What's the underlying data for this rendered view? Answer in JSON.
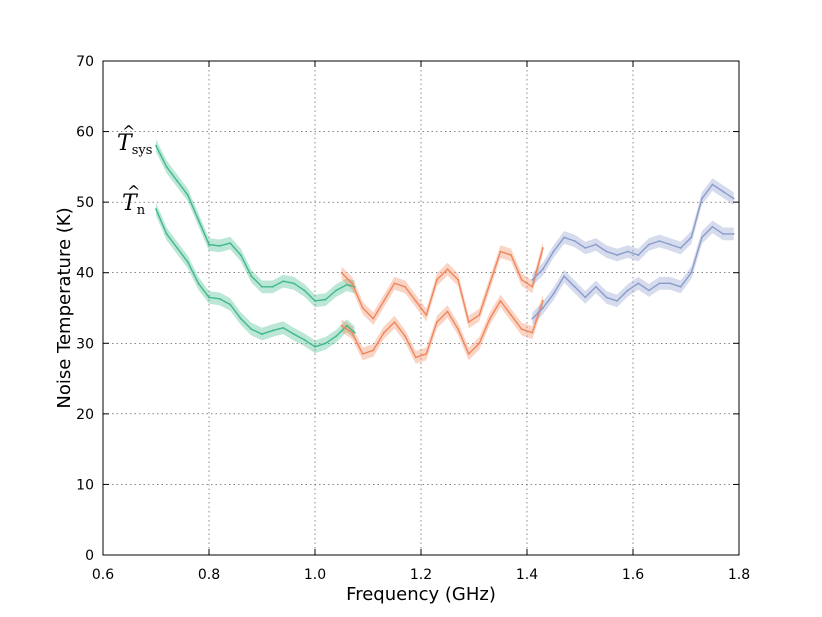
{
  "chart_data": {
    "type": "line",
    "title": "",
    "xlabel": "Frequency (GHz)",
    "ylabel": "Noise Temperature (K)",
    "xlim": [
      0.6,
      1.8
    ],
    "ylim": [
      0,
      70
    ],
    "xticks": [
      "0.6",
      "0.8",
      "1.0",
      "1.2",
      "1.4",
      "1.6",
      "1.8"
    ],
    "yticks": [
      "0",
      "10",
      "20",
      "30",
      "40",
      "50",
      "60",
      "70"
    ],
    "grid": true,
    "curve_labels": [
      {
        "main": "T",
        "sub": "sys",
        "hat": "^"
      },
      {
        "main": "T",
        "sub": "n",
        "hat": "^"
      }
    ],
    "band_colors": [
      "#3fb98a",
      "#f0865c",
      "#8a9ccc"
    ],
    "series": [
      {
        "band": 0,
        "curve": "sys",
        "x": [
          0.7,
          0.72,
          0.74,
          0.76,
          0.78,
          0.8,
          0.82,
          0.84,
          0.86,
          0.88,
          0.9,
          0.92,
          0.94,
          0.96,
          0.98,
          1.0,
          1.02,
          1.04,
          1.06,
          1.075
        ],
        "y": [
          58.0,
          55.0,
          53.0,
          51.0,
          47.5,
          44.0,
          43.8,
          44.2,
          42.5,
          39.5,
          38.0,
          38.0,
          38.8,
          38.5,
          37.5,
          36.0,
          36.2,
          37.5,
          38.3,
          38.0
        ]
      },
      {
        "band": 0,
        "curve": "n",
        "x": [
          0.7,
          0.72,
          0.74,
          0.76,
          0.78,
          0.8,
          0.82,
          0.84,
          0.86,
          0.88,
          0.9,
          0.92,
          0.94,
          0.96,
          0.98,
          1.0,
          1.02,
          1.04,
          1.06,
          1.075
        ],
        "y": [
          49.0,
          45.5,
          43.5,
          41.5,
          38.5,
          36.5,
          36.3,
          35.5,
          33.5,
          32.0,
          31.3,
          31.8,
          32.2,
          31.3,
          30.5,
          29.5,
          30.0,
          31.0,
          32.5,
          31.5
        ]
      },
      {
        "band": 1,
        "curve": "sys",
        "x": [
          1.05,
          1.07,
          1.09,
          1.11,
          1.13,
          1.15,
          1.17,
          1.19,
          1.21,
          1.23,
          1.25,
          1.27,
          1.29,
          1.31,
          1.33,
          1.35,
          1.37,
          1.39,
          1.41,
          1.43
        ],
        "y": [
          40.0,
          38.5,
          35.0,
          33.5,
          36.0,
          38.5,
          38.0,
          36.0,
          34.0,
          39.0,
          40.5,
          39.0,
          33.0,
          34.0,
          38.5,
          43.0,
          42.5,
          39.0,
          38.0,
          43.5
        ]
      },
      {
        "band": 1,
        "curve": "n",
        "x": [
          1.05,
          1.07,
          1.09,
          1.11,
          1.13,
          1.15,
          1.17,
          1.19,
          1.21,
          1.23,
          1.25,
          1.27,
          1.29,
          1.31,
          1.33,
          1.35,
          1.37,
          1.39,
          1.41,
          1.43
        ],
        "y": [
          32.5,
          31.5,
          28.5,
          29.0,
          31.5,
          33.0,
          31.0,
          28.0,
          28.5,
          33.0,
          34.5,
          32.0,
          28.5,
          30.0,
          33.5,
          36.0,
          34.0,
          32.0,
          31.5,
          36.0
        ]
      },
      {
        "band": 2,
        "curve": "sys",
        "x": [
          1.41,
          1.43,
          1.45,
          1.47,
          1.49,
          1.51,
          1.53,
          1.55,
          1.57,
          1.59,
          1.61,
          1.63,
          1.65,
          1.67,
          1.69,
          1.71,
          1.73,
          1.75,
          1.77,
          1.79
        ],
        "y": [
          39.0,
          40.5,
          43.0,
          45.0,
          44.5,
          43.5,
          44.0,
          43.0,
          42.5,
          43.0,
          42.5,
          44.0,
          44.5,
          44.0,
          43.5,
          45.0,
          50.5,
          52.5,
          51.5,
          50.5
        ]
      },
      {
        "band": 2,
        "curve": "n",
        "x": [
          1.41,
          1.43,
          1.45,
          1.47,
          1.49,
          1.51,
          1.53,
          1.55,
          1.57,
          1.59,
          1.61,
          1.63,
          1.65,
          1.67,
          1.69,
          1.71,
          1.73,
          1.75,
          1.77,
          1.79
        ],
        "y": [
          33.5,
          35.0,
          37.0,
          39.5,
          38.0,
          36.5,
          38.0,
          36.5,
          36.0,
          37.5,
          38.5,
          37.5,
          38.5,
          38.5,
          38.0,
          40.0,
          45.0,
          46.5,
          45.5,
          45.5
        ]
      }
    ]
  }
}
